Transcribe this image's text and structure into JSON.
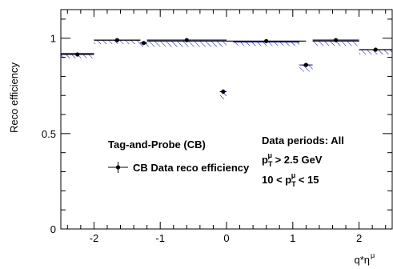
{
  "chart_data": {
    "type": "scatter",
    "title": "",
    "xlabel": "q*η",
    "xlabel_superscript": "μ",
    "ylabel": "Reco efficiency",
    "xlim": [
      -2.5,
      2.5
    ],
    "ylim": [
      0,
      1.15
    ],
    "x_ticks": [
      -2,
      -1,
      0,
      1,
      2
    ],
    "x_tick_labels": [
      "-2",
      "-1",
      "0",
      "1",
      "2"
    ],
    "y_ticks": [
      0,
      0.5,
      1
    ],
    "y_tick_labels": [
      "0",
      "0.5",
      "1"
    ],
    "grid": false,
    "colors": {
      "points": "#000000",
      "hatch": "#0000aa",
      "band_line": "#0000aa"
    },
    "series": [
      {
        "name": "CB Data reco efficiency",
        "x": [
          -2.25,
          -1.65,
          -1.25,
          -0.6,
          -0.05,
          0.6,
          1.2,
          1.65,
          2.25
        ],
        "xerr": [
          0.25,
          0.35,
          0.05,
          0.6,
          0.05,
          0.6,
          0.05,
          0.35,
          0.25
        ],
        "y": [
          0.915,
          0.99,
          0.975,
          0.99,
          0.72,
          0.985,
          0.86,
          0.99,
          0.94
        ],
        "yerr": [
          0.008,
          0.004,
          0.008,
          0.004,
          0.012,
          0.004,
          0.01,
          0.004,
          0.008
        ]
      }
    ],
    "band": {
      "segments": [
        {
          "x0": -2.5,
          "x1": -2.0,
          "y_low": 0.895,
          "y_high": 0.92
        },
        {
          "x0": -2.0,
          "x1": -1.3,
          "y_low": 0.97,
          "y_high": 0.99
        },
        {
          "x0": -1.3,
          "x1": -1.2,
          "y_low": 0.955,
          "y_high": 0.975
        },
        {
          "x0": -1.2,
          "x1": 0.0,
          "y_low": 0.955,
          "y_high": 0.985
        },
        {
          "x0": -0.1,
          "x1": 0.0,
          "y_low": 0.68,
          "y_high": 0.72
        },
        {
          "x0": 0.1,
          "x1": 1.1,
          "y_low": 0.96,
          "y_high": 0.98
        },
        {
          "x0": 1.1,
          "x1": 1.3,
          "y_low": 0.825,
          "y_high": 0.86
        },
        {
          "x0": 1.3,
          "x1": 2.0,
          "y_low": 0.96,
          "y_high": 0.985
        },
        {
          "x0": 2.0,
          "x1": 2.5,
          "y_low": 0.915,
          "y_high": 0.94
        }
      ]
    },
    "legend": {
      "header": "Tag-and-Probe (CB)",
      "entry": "CB Data reco efficiency",
      "placement": "bottom-left"
    },
    "annotations": {
      "periods": "Data periods: All",
      "pt_cut_pre": "p",
      "pt_cut_sub": "T",
      "pt_cut_sup": "μ",
      "pt_cut_post": " > 2.5 GeV",
      "pt_range_pre": "10 < p",
      "pt_range_sub": "T",
      "pt_range_sup": "μ",
      "pt_range_post": " < 15"
    }
  }
}
